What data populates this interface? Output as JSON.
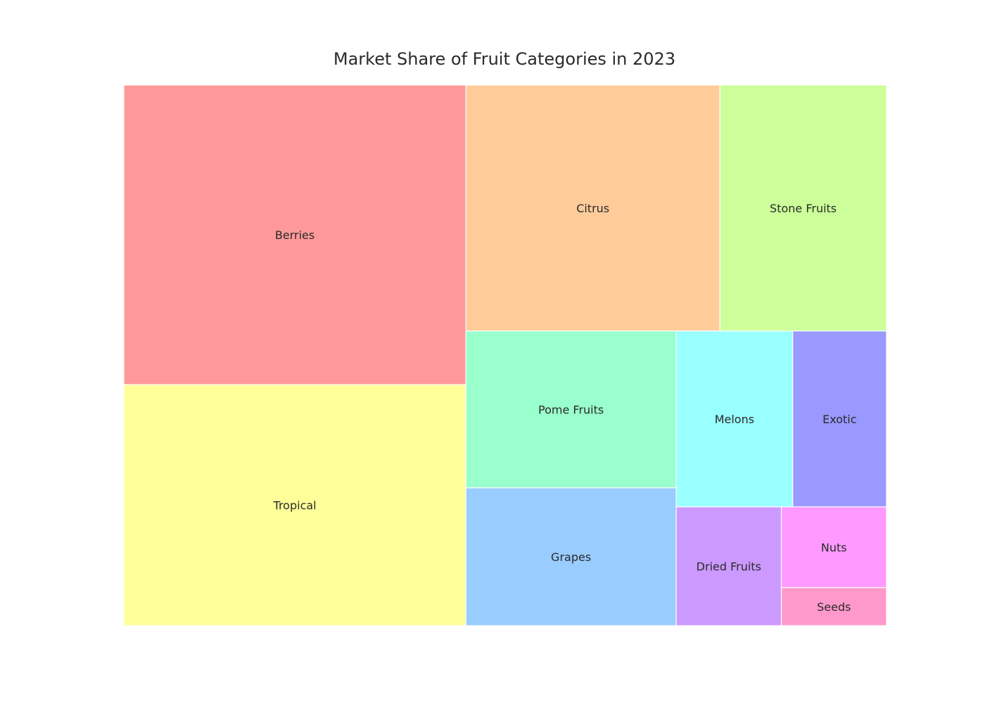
{
  "chart_data": {
    "type": "treemap",
    "title": "Market Share of Fruit Categories in 2023",
    "items": [
      {
        "label": "Berries",
        "value": 20.5,
        "color": "#FF9999"
      },
      {
        "label": "Citrus",
        "value": 12.5,
        "color": "#FFCC99"
      },
      {
        "label": "Tropical",
        "value": 16.5,
        "color": "#FFFF99"
      },
      {
        "label": "Stone Fruits",
        "value": 8.2,
        "color": "#CCFF99"
      },
      {
        "label": "Pome Fruits",
        "value": 6.6,
        "color": "#99FFCC"
      },
      {
        "label": "Grapes",
        "value": 5.8,
        "color": "#99CCFF"
      },
      {
        "label": "Melons",
        "value": 4.1,
        "color": "#99FFFF"
      },
      {
        "label": "Exotic",
        "value": 3.3,
        "color": "#9999FF"
      },
      {
        "label": "Dried Fruits",
        "value": 2.5,
        "color": "#CC99FF"
      },
      {
        "label": "Nuts",
        "value": 1.7,
        "color": "#FF99FF"
      },
      {
        "label": "Seeds",
        "value": 0.8,
        "color": "#FF99CC"
      }
    ]
  }
}
